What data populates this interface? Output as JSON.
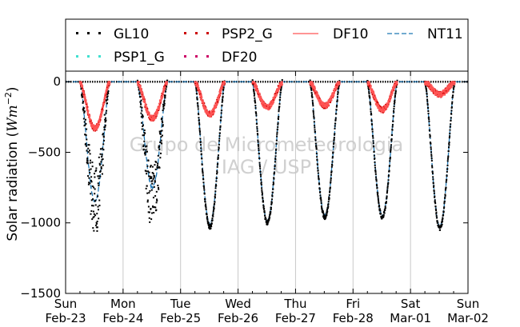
{
  "chart_data": {
    "type": "line",
    "ylabel_prefix": "Solar radiation (",
    "ylabel_unit": "Wm",
    "ylabel_exp": "−2",
    "ylabel_suffix": ")",
    "ylim": [
      -1500,
      75
    ],
    "yticks": [
      0,
      -500,
      -1000,
      -1500
    ],
    "ytick_labels": [
      "0",
      "−500",
      "−1000",
      "−1500"
    ],
    "xlim": [
      0,
      7
    ],
    "xticks": [
      {
        "day": "Sun",
        "date": "Feb-23"
      },
      {
        "day": "Mon",
        "date": "Feb-24"
      },
      {
        "day": "Tue",
        "date": "Feb-25"
      },
      {
        "day": "Wed",
        "date": "Feb-26"
      },
      {
        "day": "Thu",
        "date": "Feb-27"
      },
      {
        "day": "Fri",
        "date": "Feb-28"
      },
      {
        "day": "Sat",
        "date": "Mar-01"
      },
      {
        "day": "Sun",
        "date": "Mar-02"
      }
    ],
    "grid_x": true,
    "legend_position": "top",
    "watermark": [
      "Grupo de Micrometeorologia",
      "IAG / USP"
    ],
    "daily_peaks": {
      "GL10": [
        -1100,
        -1070,
        -1030,
        -1000,
        -960,
        -960,
        -1040
      ],
      "NT11": [
        -850,
        -750,
        -1010,
        -990,
        -950,
        -950,
        -1030
      ],
      "DF10": [
        -330,
        -260,
        -230,
        -180,
        -170,
        -200,
        -90
      ]
    },
    "series": [
      {
        "name": "GL10",
        "color": "#000000",
        "style": "dotted"
      },
      {
        "name": "PSP1_G",
        "color": "#40e0d0",
        "style": "dotted"
      },
      {
        "name": "PSP2_G",
        "color": "#cc0000",
        "style": "dotted"
      },
      {
        "name": "DF20",
        "color": "#cc0066",
        "style": "dotted"
      },
      {
        "name": "DF10",
        "color": "#ff5555",
        "style": "solid"
      },
      {
        "name": "NT11",
        "color": "#1f77b4",
        "style": "dashed"
      }
    ]
  }
}
